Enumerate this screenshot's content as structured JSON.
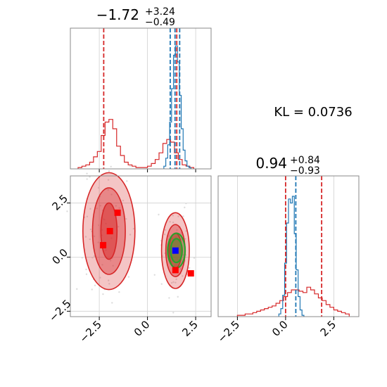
{
  "colors": {
    "red": "#d62728",
    "blue": "#1f77b4",
    "green": "#2ca02c",
    "marker_blue": "#0000ff",
    "marker_red": "#ff0000",
    "grid": "#d0d0d0"
  },
  "kl_text": "KL = 0.0736",
  "chart_data": [
    {
      "type": "histogram",
      "panel": "top-left",
      "title": {
        "main": "−1.72",
        "sup": "+3.24",
        "sub": "−0.49"
      },
      "xlim": [
        -4.0,
        3.3
      ],
      "ylim": [
        0,
        1.0
      ],
      "grid": true,
      "series": [
        {
          "color": "#d62728",
          "bins": [
            -3.5,
            -3.3,
            -3.1,
            -2.9,
            -2.7,
            -2.5,
            -2.3,
            -2.1,
            -1.9,
            -1.7,
            -1.5,
            -1.3,
            -1.1,
            -0.9,
            -0.7,
            -0.5,
            -0.3,
            -0.1,
            0.1,
            0.3,
            0.5,
            0.7,
            0.9,
            1.1,
            1.3,
            1.5,
            1.7,
            1.9,
            2.1,
            2.3
          ],
          "values": [
            0.01,
            0.02,
            0.03,
            0.05,
            0.09,
            0.13,
            0.25,
            0.35,
            0.37,
            0.3,
            0.17,
            0.1,
            0.05,
            0.03,
            0.02,
            0.01,
            0.01,
            0.01,
            0.02,
            0.04,
            0.07,
            0.12,
            0.19,
            0.22,
            0.2,
            0.12,
            0.07,
            0.03,
            0.02,
            0.01
          ]
        },
        {
          "color": "#1f77b4",
          "bins": [
            0.9,
            1.0,
            1.1,
            1.2,
            1.3,
            1.4,
            1.5,
            1.6,
            1.7,
            1.8,
            1.9,
            2.0,
            2.1,
            2.2
          ],
          "values": [
            0.02,
            0.08,
            0.18,
            0.35,
            0.6,
            0.85,
            0.92,
            0.8,
            0.55,
            0.3,
            0.14,
            0.06,
            0.02,
            0.01
          ]
        }
      ],
      "vlines": [
        {
          "x": -2.27,
          "color": "#d62728"
        },
        {
          "x": 1.52,
          "color": "#d62728"
        },
        {
          "x": 1.18,
          "color": "#1f77b4"
        },
        {
          "x": 1.43,
          "color": "#1f77b4"
        },
        {
          "x": 1.67,
          "color": "#1f77b4"
        }
      ]
    },
    {
      "type": "scatter",
      "panel": "bottom-left",
      "xlim": [
        -4.0,
        3.3
      ],
      "ylim": [
        -2.75,
        3.75
      ],
      "xticks": [
        "−2.5",
        "0.0",
        "2.5"
      ],
      "xtick_values": [
        -2.5,
        0.0,
        2.5
      ],
      "yticks": [
        "−2.5",
        "0.0",
        "2.5"
      ],
      "ytick_values": [
        -2.5,
        0.0,
        2.5
      ],
      "grid": true,
      "contours": [
        {
          "color": "#d62728",
          "cx": -2.0,
          "cy": 1.2,
          "levels": [
            [
              1.35,
              2.7,
              0.97
            ],
            [
              0.85,
              2.0,
              0.62
            ],
            [
              0.42,
              1.3,
              0.32
            ]
          ]
        },
        {
          "color": "#d62728",
          "cx": 1.45,
          "cy": 0.3,
          "levels": [
            [
              0.72,
              1.75,
              0.55
            ],
            [
              0.5,
              1.2,
              0.35
            ],
            [
              0.33,
              0.8,
              0.25
            ]
          ]
        },
        {
          "color": "#2ca02c",
          "cx": 1.5,
          "cy": 0.3,
          "levels": [
            [
              0.45,
              0.8,
              0.3
            ],
            [
              0.3,
              0.55,
              0.2
            ]
          ]
        }
      ],
      "markers": [
        {
          "x": -1.55,
          "y": 2.05,
          "color": "#ff0000"
        },
        {
          "x": -1.95,
          "y": 1.2,
          "color": "#ff0000"
        },
        {
          "x": -2.3,
          "y": 0.55,
          "color": "#ff0000"
        },
        {
          "x": 1.45,
          "y": -0.6,
          "color": "#ff0000"
        },
        {
          "x": 2.25,
          "y": -0.75,
          "color": "#ff0000"
        },
        {
          "x": 1.45,
          "y": 0.3,
          "color": "#0000ff"
        }
      ]
    },
    {
      "type": "histogram",
      "panel": "bottom-right",
      "title": {
        "main": "0.94",
        "sup": "+0.84",
        "sub": "−0.93"
      },
      "xlim": [
        -3.5,
        3.8
      ],
      "ylim": [
        0,
        1.0
      ],
      "xticks": [
        "−2.5",
        "0.0",
        "2.5"
      ],
      "xtick_values": [
        -2.5,
        0.0,
        2.5
      ],
      "grid": true,
      "series": [
        {
          "color": "#d62728",
          "bins": [
            -2.4,
            -2.2,
            -2.0,
            -1.8,
            -1.6,
            -1.4,
            -1.2,
            -1.0,
            -0.8,
            -0.6,
            -0.4,
            -0.2,
            0.0,
            0.2,
            0.4,
            0.6,
            0.8,
            1.0,
            1.2,
            1.4,
            1.6,
            1.8,
            2.0,
            2.2,
            2.4,
            2.6,
            2.8,
            3.0,
            3.2
          ],
          "values": [
            0.01,
            0.01,
            0.02,
            0.02,
            0.03,
            0.04,
            0.05,
            0.06,
            0.07,
            0.08,
            0.1,
            0.12,
            0.15,
            0.18,
            0.2,
            0.2,
            0.19,
            0.18,
            0.22,
            0.2,
            0.17,
            0.14,
            0.12,
            0.09,
            0.07,
            0.05,
            0.04,
            0.03,
            0.02
          ]
        },
        {
          "color": "#1f77b4",
          "bins": [
            -0.3,
            -0.2,
            -0.1,
            0.0,
            0.1,
            0.2,
            0.3,
            0.4,
            0.5,
            0.6,
            0.7,
            0.8,
            0.9
          ],
          "values": [
            0.02,
            0.06,
            0.16,
            0.4,
            0.7,
            0.88,
            0.85,
            0.9,
            0.62,
            0.35,
            0.15,
            0.05,
            0.01
          ]
        }
      ],
      "vlines": [
        {
          "x": 0.0,
          "color": "#d62728"
        },
        {
          "x": 0.53,
          "color": "#1f77b4"
        },
        {
          "x": 1.87,
          "color": "#d62728"
        }
      ]
    }
  ]
}
